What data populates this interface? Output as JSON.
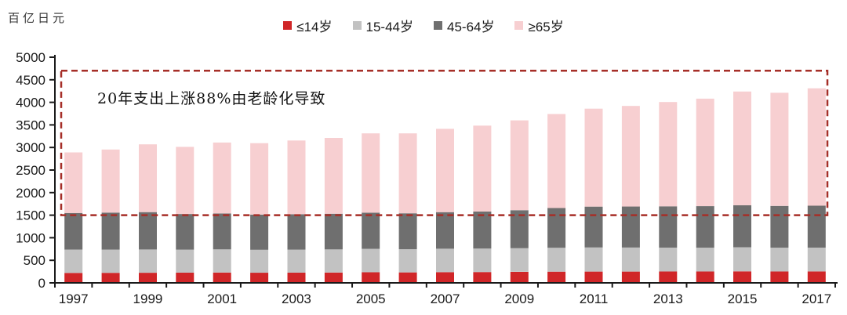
{
  "chart_data": {
    "type": "bar",
    "stacked": true,
    "unit_label": "百亿日元",
    "title": "",
    "xlabel": "",
    "ylabel": "百亿日元",
    "ylim": [
      0,
      5000
    ],
    "ytick_step": 500,
    "grid": false,
    "legend_position": "top-center",
    "categories": [
      1997,
      1998,
      1999,
      2000,
      2001,
      2002,
      2003,
      2004,
      2005,
      2006,
      2007,
      2008,
      2009,
      2010,
      2011,
      2012,
      2013,
      2014,
      2015,
      2016,
      2017
    ],
    "x_tick_label_every": 2,
    "series": [
      {
        "name": "≤14岁",
        "color": "#d02628",
        "values": [
          221,
          222,
          224,
          226,
          229,
          225,
          226,
          230,
          235,
          232,
          237,
          240,
          245,
          248,
          250,
          250,
          252,
          252,
          255,
          252,
          254
        ]
      },
      {
        "name": "15-44岁",
        "color": "#c2c2c2",
        "values": [
          514,
          515,
          516,
          510,
          515,
          508,
          510,
          512,
          520,
          515,
          520,
          520,
          525,
          530,
          535,
          532,
          530,
          528,
          535,
          528,
          527
        ]
      },
      {
        "name": "45-64岁",
        "color": "#6f6f6f",
        "values": [
          813,
          820,
          828,
          790,
          795,
          780,
          785,
          790,
          800,
          795,
          810,
          820,
          840,
          880,
          905,
          910,
          915,
          920,
          930,
          925,
          929
        ]
      },
      {
        "name": "≥65岁",
        "color": "#f7cfd1",
        "values": [
          1343,
          1397,
          1502,
          1488,
          1571,
          1582,
          1633,
          1679,
          1758,
          1771,
          1847,
          1904,
          1990,
          2084,
          2169,
          2229,
          2310,
          2381,
          2519,
          2506,
          2600
        ]
      }
    ],
    "totals": [
      2891,
      2954,
      3070,
      3014,
      3110,
      3095,
      3154,
      3211,
      3313,
      3313,
      3414,
      3484,
      3600,
      3742,
      3859,
      3921,
      4007,
      4081,
      4239,
      4211,
      4310
    ],
    "annotation": {
      "text": "20年支出上涨88%由老龄化导致",
      "box_color": "#a62f28",
      "box_top_value": 4700,
      "box_bottom_value": 1500
    },
    "axis_color": "#1a1a1a"
  }
}
